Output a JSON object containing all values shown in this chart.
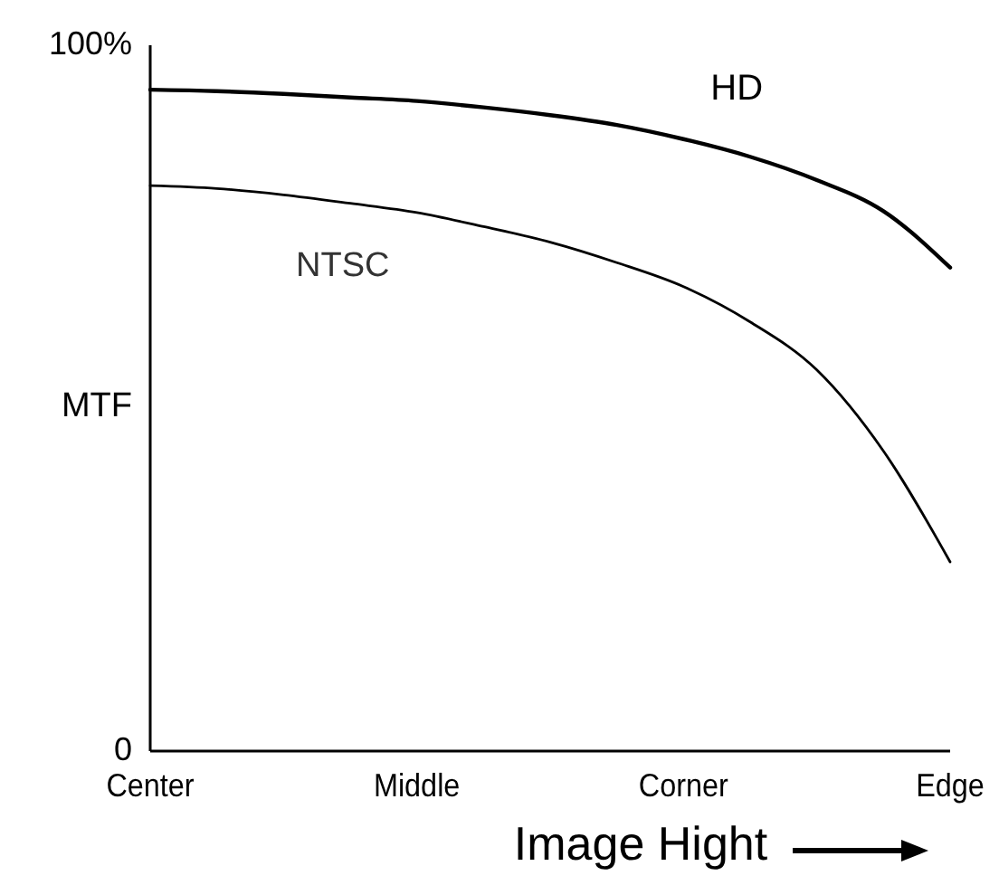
{
  "chart_data": {
    "type": "line",
    "xlabel": "Image Hight",
    "ylabel": "MTF",
    "categories": [
      "Center",
      null,
      null,
      null,
      "Middle",
      null,
      null,
      null,
      "Corner",
      null,
      null,
      null,
      "Edge"
    ],
    "ylim": [
      0,
      100
    ],
    "yticks": [
      {
        "value": 0,
        "label": "0"
      },
      {
        "value": 100,
        "label": "100%"
      }
    ],
    "grid": false,
    "marker": "none",
    "line_style": "solid",
    "series": [
      {
        "name": "HD",
        "color": "#000000",
        "values": [
          93.7,
          93.5,
          93.1,
          92.6,
          92.1,
          91.2,
          90.1,
          88.7,
          86.7,
          84.2,
          80.9,
          76.5,
          68.5
        ]
      },
      {
        "name": "NTSC",
        "color": "#000000",
        "values": [
          80.1,
          79.7,
          78.8,
          77.6,
          76.3,
          74.3,
          72.1,
          69.2,
          65.8,
          60.8,
          54,
          42.5,
          26.8
        ]
      }
    ]
  }
}
